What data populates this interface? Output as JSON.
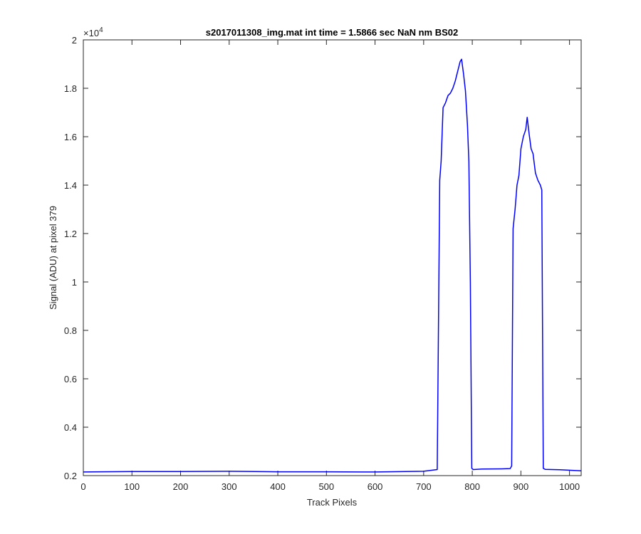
{
  "chart_data": {
    "type": "line",
    "title": "s2017011308_img.mat int time = 1.5866 sec  NaN nm BS02",
    "xlabel": "Track Pixels",
    "ylabel": "Signal (ADU) at pixel 379",
    "xlim": [
      0,
      1024
    ],
    "ylim": [
      2000,
      20000
    ],
    "x_ticks": [
      0,
      100,
      200,
      300,
      400,
      500,
      600,
      700,
      800,
      900,
      1000
    ],
    "x_tick_labels": [
      "0",
      "100",
      "200",
      "300",
      "400",
      "500",
      "600",
      "700",
      "800",
      "900",
      "1000"
    ],
    "y_ticks": [
      2000,
      4000,
      6000,
      8000,
      10000,
      12000,
      14000,
      16000,
      18000,
      20000
    ],
    "y_tick_labels": [
      "0.2",
      "0.4",
      "0.6",
      "0.8",
      "1",
      "1.2",
      "1.4",
      "1.6",
      "1.8",
      "2"
    ],
    "y_exponent_label": "×10",
    "y_exponent_power": "4",
    "grid": false,
    "line_color": "#0000ff",
    "series": [
      {
        "x": [
          0,
          100,
          200,
          300,
          400,
          500,
          600,
          700,
          728,
          733,
          736,
          740,
          745,
          750,
          755,
          760,
          765,
          770,
          775,
          778,
          782,
          786,
          790,
          793,
          796,
          799,
          802,
          820,
          860,
          878,
          881,
          884,
          888,
          892,
          896,
          900,
          905,
          910,
          913,
          917,
          921,
          925,
          930,
          935,
          940,
          943,
          946,
          950,
          980,
          1024
        ],
        "y": [
          2150,
          2170,
          2170,
          2180,
          2160,
          2160,
          2150,
          2180,
          2250,
          14200,
          15000,
          17200,
          17400,
          17700,
          17800,
          18000,
          18300,
          18700,
          19100,
          19200,
          18600,
          17900,
          16500,
          15000,
          10000,
          2300,
          2250,
          2270,
          2280,
          2290,
          2400,
          12200,
          13000,
          14000,
          14400,
          15500,
          16000,
          16300,
          16800,
          16100,
          15500,
          15300,
          14500,
          14200,
          14000,
          13800,
          2300,
          2260,
          2240,
          2200
        ]
      }
    ]
  }
}
